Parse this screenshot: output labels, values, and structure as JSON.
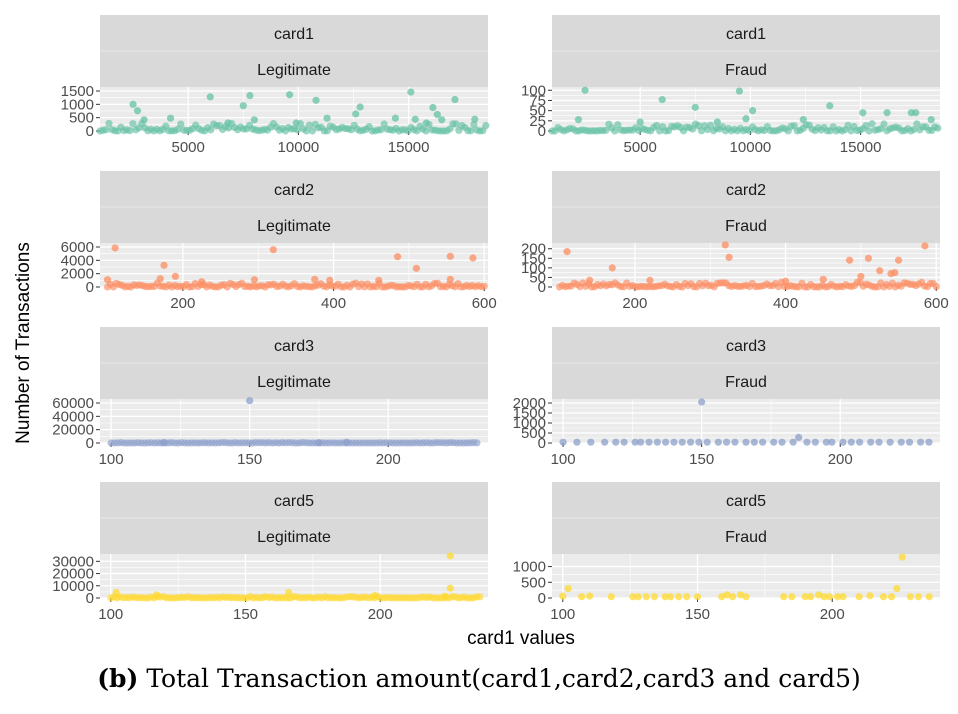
{
  "figure": {
    "ylabel": "Number of Transactions",
    "xlabel": "card1 values",
    "caption_label": "(b)",
    "caption_text": "Total Transaction amount(card1,card2,card3 and card5)"
  },
  "colors": {
    "panel_bg": "#ebebeb",
    "strip_bg": "#d9d9d9",
    "grid": "#ffffff",
    "card1": "#66c2a5",
    "card2": "#fc8d62",
    "card3": "#8da0cb",
    "card5": "#ffd92f"
  },
  "chart_data": [
    {
      "type": "scatter",
      "facet": "card1",
      "label": "Legitimate",
      "color_key": "card1",
      "xlim": [
        1000,
        18600
      ],
      "xticks": [
        5000,
        10000,
        15000
      ],
      "ylim": [
        0,
        1650
      ],
      "yticks": [
        0,
        500,
        1000,
        1500
      ],
      "points": [
        [
          2500,
          1000
        ],
        [
          2700,
          760
        ],
        [
          3000,
          420
        ],
        [
          4200,
          480
        ],
        [
          6000,
          1280
        ],
        [
          7500,
          950
        ],
        [
          7800,
          1330
        ],
        [
          8000,
          420
        ],
        [
          9600,
          1360
        ],
        [
          10800,
          1150
        ],
        [
          11300,
          480
        ],
        [
          12600,
          640
        ],
        [
          12800,
          900
        ],
        [
          15100,
          1460
        ],
        [
          15300,
          440
        ],
        [
          15800,
          300
        ],
        [
          16100,
          880
        ],
        [
          16300,
          620
        ],
        [
          16500,
          420
        ],
        [
          17100,
          1180
        ],
        [
          18000,
          440
        ],
        [
          14400,
          480
        ],
        [
          9900,
          300
        ],
        [
          6800,
          300
        ]
      ],
      "baseline": {
        "x0": 1000,
        "x1": 18500,
        "ymax": 300,
        "count": 130
      }
    },
    {
      "type": "scatter",
      "facet": "card1",
      "label": "Fraud",
      "color_key": "card1",
      "xlim": [
        1000,
        18600
      ],
      "xticks": [
        5000,
        10000,
        15000
      ],
      "ylim": [
        0,
        108
      ],
      "yticks": [
        0,
        25,
        50,
        75,
        100
      ],
      "points": [
        [
          2500,
          100
        ],
        [
          6000,
          77
        ],
        [
          7500,
          58
        ],
        [
          9500,
          98
        ],
        [
          10100,
          50
        ],
        [
          9800,
          30
        ],
        [
          13600,
          62
        ],
        [
          15100,
          45
        ],
        [
          16200,
          45
        ],
        [
          17300,
          45
        ],
        [
          17500,
          45
        ],
        [
          18200,
          28
        ],
        [
          2200,
          28
        ],
        [
          5000,
          22
        ],
        [
          12400,
          28
        ],
        [
          8500,
          22
        ]
      ],
      "baseline": {
        "x0": 1000,
        "x1": 18500,
        "ymax": 18,
        "count": 130
      }
    },
    {
      "type": "scatter",
      "facet": "card2",
      "label": "Legitimate",
      "color_key": "card2",
      "xlim": [
        90,
        605
      ],
      "xticks": [
        200,
        400,
        600
      ],
      "ylim": [
        0,
        6600
      ],
      "yticks": [
        0,
        2000,
        4000,
        6000
      ],
      "points": [
        [
          110,
          5850
        ],
        [
          175,
          3250
        ],
        [
          190,
          1600
        ],
        [
          170,
          1250
        ],
        [
          320,
          5600
        ],
        [
          485,
          4550
        ],
        [
          510,
          2800
        ],
        [
          555,
          4600
        ],
        [
          585,
          4350
        ],
        [
          555,
          1150
        ],
        [
          295,
          1100
        ],
        [
          395,
          1000
        ],
        [
          460,
          1000
        ],
        [
          225,
          800
        ],
        [
          375,
          1150
        ],
        [
          100,
          1100
        ]
      ],
      "baseline": {
        "x0": 100,
        "x1": 600,
        "ymax": 600,
        "count": 130
      }
    },
    {
      "type": "scatter",
      "facet": "card2",
      "label": "Fraud",
      "color_key": "card2",
      "xlim": [
        90,
        605
      ],
      "xticks": [
        200,
        400,
        600
      ],
      "ylim": [
        0,
        230
      ],
      "yticks": [
        0,
        50,
        100,
        150,
        200
      ],
      "points": [
        [
          110,
          185
        ],
        [
          170,
          100
        ],
        [
          320,
          220
        ],
        [
          325,
          155
        ],
        [
          485,
          140
        ],
        [
          510,
          150
        ],
        [
          525,
          85
        ],
        [
          540,
          70
        ],
        [
          545,
          75
        ],
        [
          550,
          140
        ],
        [
          585,
          215
        ],
        [
          500,
          55
        ],
        [
          450,
          40
        ],
        [
          400,
          30
        ],
        [
          220,
          35
        ],
        [
          140,
          35
        ]
      ],
      "baseline": {
        "x0": 100,
        "x1": 600,
        "ymax": 25,
        "count": 130
      }
    },
    {
      "type": "scatter",
      "facet": "card3",
      "label": "Legitimate",
      "color_key": "card3",
      "xlim": [
        96,
        236
      ],
      "xticks": [
        100,
        150,
        200
      ],
      "ylim": [
        0,
        66000
      ],
      "yticks": [
        0,
        20000,
        40000,
        60000
      ],
      "points": [
        [
          150,
          63500
        ],
        [
          185,
          1200
        ],
        [
          119,
          700
        ],
        [
          175,
          600
        ]
      ],
      "baseline": {
        "x0": 100,
        "x1": 232,
        "ymax": 700,
        "count": 110
      }
    },
    {
      "type": "scatter",
      "facet": "card3",
      "label": "Fraud",
      "color_key": "card3",
      "xlim": [
        96,
        236
      ],
      "xticks": [
        100,
        150,
        200
      ],
      "ylim": [
        0,
        2200
      ],
      "yticks": [
        0,
        500,
        1000,
        1500,
        2000
      ],
      "points": [
        [
          150,
          2050
        ],
        [
          185,
          280
        ],
        [
          100,
          40
        ],
        [
          105,
          40
        ],
        [
          110,
          40
        ],
        [
          115,
          40
        ],
        [
          119,
          40
        ],
        [
          122,
          40
        ],
        [
          126,
          40
        ],
        [
          128,
          40
        ],
        [
          131,
          40
        ],
        [
          134,
          40
        ],
        [
          137,
          40
        ],
        [
          140,
          40
        ],
        [
          143,
          40
        ],
        [
          146,
          40
        ],
        [
          149,
          40
        ],
        [
          152,
          40
        ],
        [
          156,
          40
        ],
        [
          159,
          40
        ],
        [
          162,
          40
        ],
        [
          166,
          40
        ],
        [
          169,
          40
        ],
        [
          172,
          40
        ],
        [
          176,
          40
        ],
        [
          179,
          40
        ],
        [
          183,
          40
        ],
        [
          188,
          40
        ],
        [
          191,
          40
        ],
        [
          195,
          40
        ],
        [
          197,
          40
        ],
        [
          201,
          40
        ],
        [
          204,
          40
        ],
        [
          207,
          40
        ],
        [
          211,
          40
        ],
        [
          214,
          40
        ],
        [
          218,
          40
        ],
        [
          222,
          40
        ],
        [
          225,
          40
        ],
        [
          229,
          40
        ],
        [
          232,
          40
        ]
      ],
      "baseline": null
    },
    {
      "type": "scatter",
      "facet": "card5",
      "label": "Legitimate",
      "color_key": "card5",
      "xlim": [
        96,
        240
      ],
      "xticks": [
        100,
        150,
        200
      ],
      "ylim": [
        0,
        36000
      ],
      "yticks": [
        0,
        10000,
        20000,
        30000
      ],
      "points": [
        [
          226,
          34500
        ],
        [
          226,
          8000
        ],
        [
          102,
          4500
        ],
        [
          117,
          2500
        ],
        [
          166,
          4500
        ],
        [
          198,
          2000
        ],
        [
          224,
          1500
        ]
      ],
      "baseline": {
        "x0": 100,
        "x1": 237,
        "ymax": 1200,
        "count": 120
      }
    },
    {
      "type": "scatter",
      "facet": "card5",
      "label": "Fraud",
      "color_key": "card5",
      "xlim": [
        96,
        240
      ],
      "xticks": [
        100,
        150,
        200
      ],
      "ylim": [
        0,
        1400
      ],
      "yticks": [
        0,
        500,
        1000
      ],
      "points": [
        [
          226,
          1300
        ],
        [
          102,
          300
        ],
        [
          100,
          60
        ],
        [
          107,
          40
        ],
        [
          110,
          60
        ],
        [
          118,
          40
        ],
        [
          126,
          40
        ],
        [
          128,
          40
        ],
        [
          131,
          40
        ],
        [
          134,
          40
        ],
        [
          138,
          40
        ],
        [
          140,
          40
        ],
        [
          143,
          40
        ],
        [
          146,
          40
        ],
        [
          150,
          40
        ],
        [
          159,
          40
        ],
        [
          161,
          100
        ],
        [
          163,
          40
        ],
        [
          166,
          100
        ],
        [
          168,
          40
        ],
        [
          182,
          40
        ],
        [
          185,
          40
        ],
        [
          190,
          40
        ],
        [
          192,
          40
        ],
        [
          195,
          100
        ],
        [
          197,
          40
        ],
        [
          199,
          40
        ],
        [
          202,
          40
        ],
        [
          204,
          40
        ],
        [
          210,
          40
        ],
        [
          214,
          70
        ],
        [
          219,
          40
        ],
        [
          222,
          40
        ],
        [
          224,
          300
        ],
        [
          229,
          40
        ],
        [
          232,
          40
        ],
        [
          236,
          40
        ]
      ],
      "baseline": null
    }
  ]
}
